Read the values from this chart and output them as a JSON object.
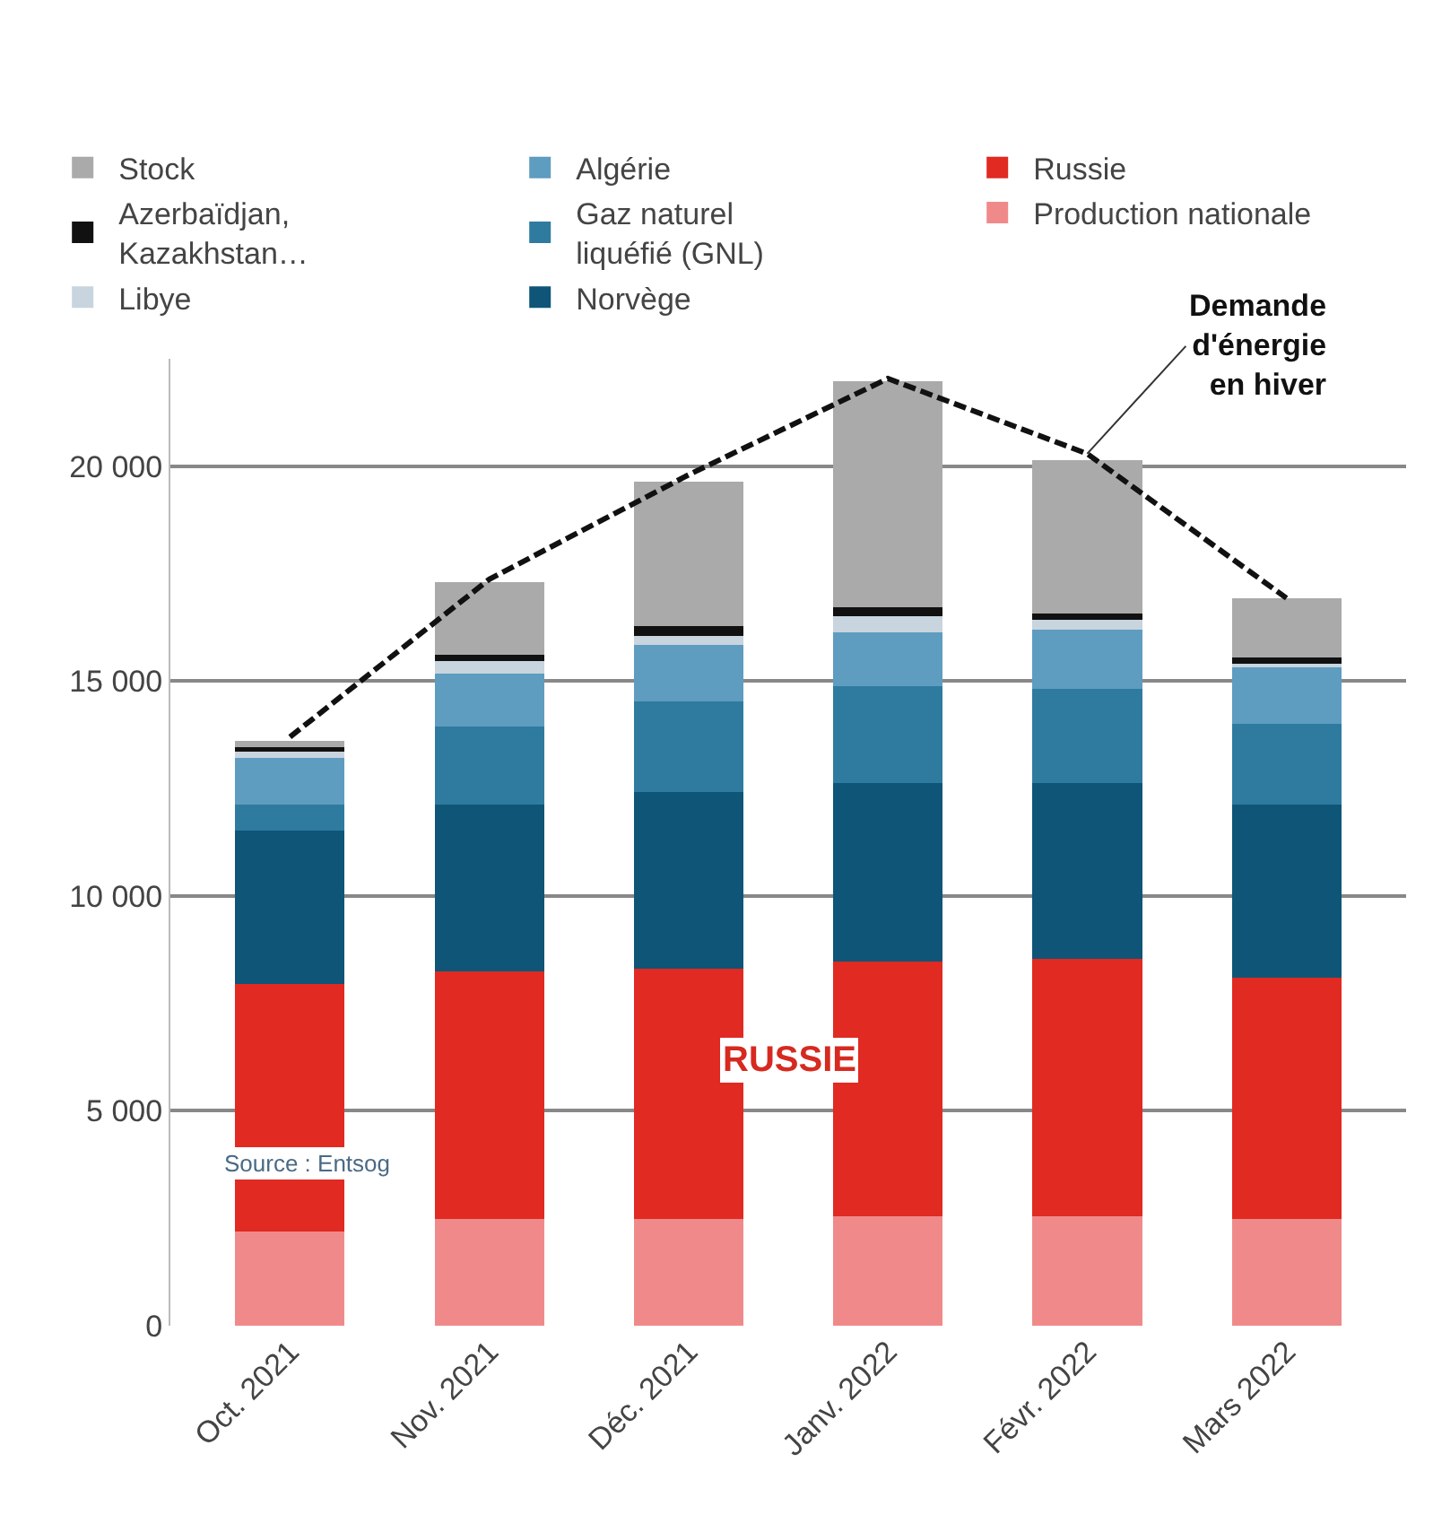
{
  "chart_data": {
    "type": "bar",
    "stacked": true,
    "categories": [
      "Oct. 2021",
      "Nov. 2021",
      "Déc. 2021",
      "Janv. 2022",
      "Févr. 2022",
      "Mars 2022"
    ],
    "series": [
      {
        "name": "Production nationale",
        "color": "#f08a8a",
        "values": [
          2200,
          2480,
          2480,
          2550,
          2550,
          2480
        ]
      },
      {
        "name": "Russie",
        "color": "#e02a22",
        "values": [
          5750,
          5770,
          5820,
          5920,
          5990,
          5620
        ]
      },
      {
        "name": "Norvège",
        "color": "#0e5577",
        "values": [
          3580,
          3870,
          4110,
          4160,
          4090,
          4020
        ]
      },
      {
        "name": "Gaz naturel\nliquéfié (GNL)",
        "color": "#2f7ba0",
        "values": [
          590,
          1820,
          2120,
          2260,
          2190,
          1890
        ]
      },
      {
        "name": "Algérie",
        "color": "#5e9cc0",
        "values": [
          1090,
          1240,
          1310,
          1240,
          1380,
          1320
        ]
      },
      {
        "name": "Libye",
        "color": "#c8d4de",
        "values": [
          150,
          290,
          220,
          370,
          220,
          70
        ]
      },
      {
        "name": "Azerbaïdjan,\nKazakhstan…",
        "color": "#111111",
        "values": [
          100,
          150,
          220,
          220,
          150,
          150
        ]
      },
      {
        "name": "Stock",
        "color": "#aaaaaa",
        "values": [
          140,
          1680,
          3360,
          5250,
          3580,
          1380
        ]
      },
      {
        "name": "Demande\nd'énergie\nen hiver",
        "type": "line",
        "color": "#111111",
        "line_style": "dashed",
        "values": [
          13700,
          17370,
          19800,
          22040,
          20290,
          16930
        ]
      }
    ],
    "ylim": [
      0,
      22500
    ],
    "yticks": [
      0,
      {
        "value": 5000,
        "label": "5 000"
      },
      {
        "value": 10000,
        "label": "10 000"
      },
      {
        "value": 15000,
        "label": "15 000"
      },
      {
        "value": 20000,
        "label": "20 000"
      }
    ],
    "grid": "y",
    "legend": "top",
    "annotations": [
      "RUSSIE",
      "Source : Entsog"
    ]
  }
}
